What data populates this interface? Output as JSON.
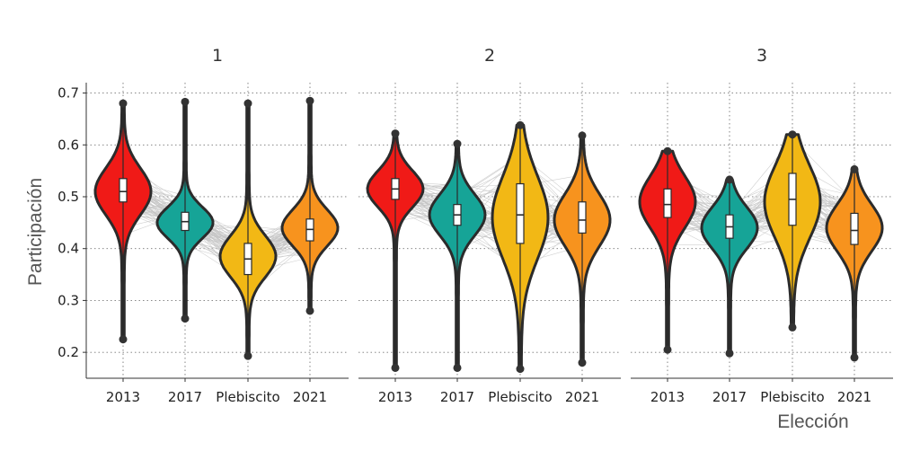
{
  "chart_data": {
    "type": "violin",
    "ylabel": "Participación",
    "xlabel": "Elección",
    "ylim": [
      0.15,
      0.72
    ],
    "yticks": [
      0.2,
      0.3,
      0.4,
      0.5,
      0.6,
      0.7
    ],
    "categories": [
      "2013",
      "2017",
      "Plebiscito",
      "2021"
    ],
    "grid": true,
    "colors": {
      "2013": "#f01a17",
      "2017": "#16a497",
      "Plebiscito": "#f2b815",
      "2021": "#f7931e"
    },
    "panels": [
      {
        "title": "1",
        "violins": [
          {
            "category": "2013",
            "min": 0.225,
            "q1": 0.49,
            "median": 0.51,
            "q3": 0.535,
            "max": 0.68,
            "mode": 0.51,
            "spread": 0.045
          },
          {
            "category": "2017",
            "min": 0.265,
            "q1": 0.435,
            "median": 0.452,
            "q3": 0.47,
            "max": 0.683,
            "mode": 0.45,
            "spread": 0.03
          },
          {
            "category": "Plebiscito",
            "min": 0.193,
            "q1": 0.35,
            "median": 0.38,
            "q3": 0.41,
            "max": 0.68,
            "mode": 0.385,
            "spread": 0.04
          },
          {
            "category": "2021",
            "min": 0.28,
            "q1": 0.415,
            "median": 0.437,
            "q3": 0.457,
            "max": 0.685,
            "mode": 0.44,
            "spread": 0.035
          }
        ]
      },
      {
        "title": "2",
        "violins": [
          {
            "category": "2013",
            "min": 0.17,
            "q1": 0.495,
            "median": 0.515,
            "q3": 0.535,
            "max": 0.622,
            "mode": 0.515,
            "spread": 0.035
          },
          {
            "category": "2017",
            "min": 0.17,
            "q1": 0.445,
            "median": 0.465,
            "q3": 0.485,
            "max": 0.602,
            "mode": 0.465,
            "spread": 0.04
          },
          {
            "category": "Plebiscito",
            "min": 0.168,
            "q1": 0.41,
            "median": 0.465,
            "q3": 0.525,
            "max": 0.638,
            "mode": 0.46,
            "spread": 0.08
          },
          {
            "category": "2021",
            "min": 0.18,
            "q1": 0.43,
            "median": 0.455,
            "q3": 0.49,
            "max": 0.618,
            "mode": 0.455,
            "spread": 0.05
          }
        ]
      },
      {
        "title": "3",
        "violins": [
          {
            "category": "2013",
            "min": 0.205,
            "q1": 0.46,
            "median": 0.485,
            "q3": 0.515,
            "max": 0.588,
            "mode": 0.49,
            "spread": 0.05
          },
          {
            "category": "2017",
            "min": 0.198,
            "q1": 0.42,
            "median": 0.442,
            "q3": 0.465,
            "max": 0.533,
            "mode": 0.44,
            "spread": 0.04
          },
          {
            "category": "Plebiscito",
            "min": 0.248,
            "q1": 0.445,
            "median": 0.495,
            "q3": 0.545,
            "max": 0.62,
            "mode": 0.49,
            "spread": 0.07
          },
          {
            "category": "2021",
            "min": 0.19,
            "q1": 0.408,
            "median": 0.435,
            "q3": 0.468,
            "max": 0.553,
            "mode": 0.44,
            "spread": 0.045
          }
        ]
      }
    ]
  }
}
